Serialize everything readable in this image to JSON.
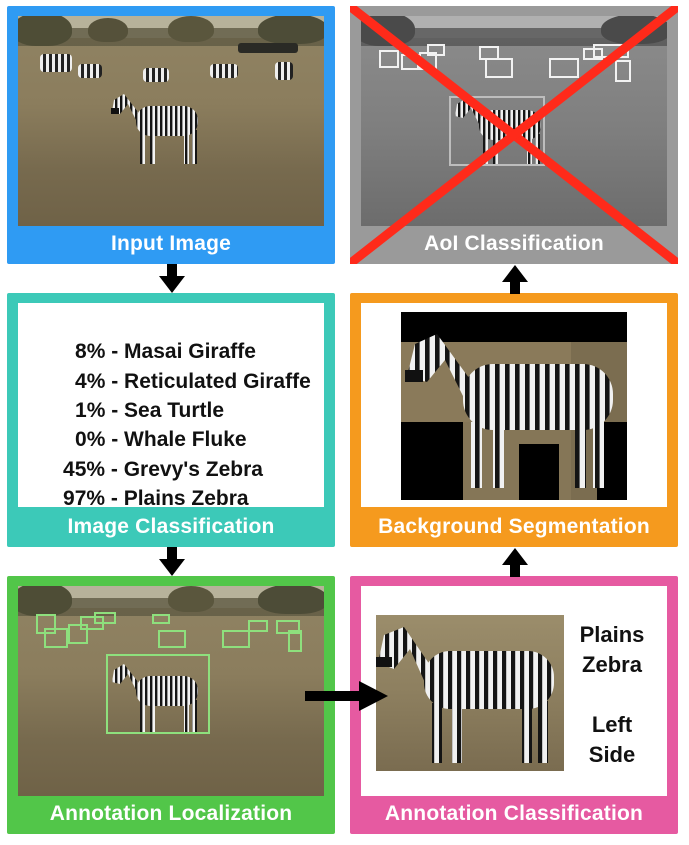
{
  "colors": {
    "input": "#2f9bf3",
    "image_classification": "#3cc9b8",
    "localization": "#52c649",
    "annotation_classification": "#e65aa1",
    "segmentation": "#f59a1e",
    "aoi": "#9a9a9a",
    "cross": "#ff2a1a",
    "detection_box": "#8ee07d",
    "arrow": "#000000"
  },
  "panels": {
    "input_image": {
      "caption": "Input Image"
    },
    "image_classification": {
      "caption": "Image Classification",
      "results": [
        {
          "percent": "8%",
          "species": "Masai Giraffe"
        },
        {
          "percent": "4%",
          "species": "Reticulated Giraffe"
        },
        {
          "percent": "1%",
          "species": "Sea Turtle"
        },
        {
          "percent": "0%",
          "species": "Whale Fluke"
        },
        {
          "percent": "45%",
          "species": "Grevy's Zebra"
        },
        {
          "percent": "97%",
          "species": "Plains Zebra"
        }
      ]
    },
    "annotation_localization": {
      "caption": "Annotation Localization"
    },
    "annotation_classification": {
      "caption": "Annotation Classification",
      "species_line1": "Plains",
      "species_line2": "Zebra",
      "viewpoint_line1": "Left",
      "viewpoint_line2": "Side"
    },
    "background_segmentation": {
      "caption": "Background Segmentation"
    },
    "aoi_classification": {
      "caption": "AoI Classification",
      "rejected": true
    }
  },
  "icons": {
    "arrow": "black-arrow",
    "cross": "red-x"
  }
}
